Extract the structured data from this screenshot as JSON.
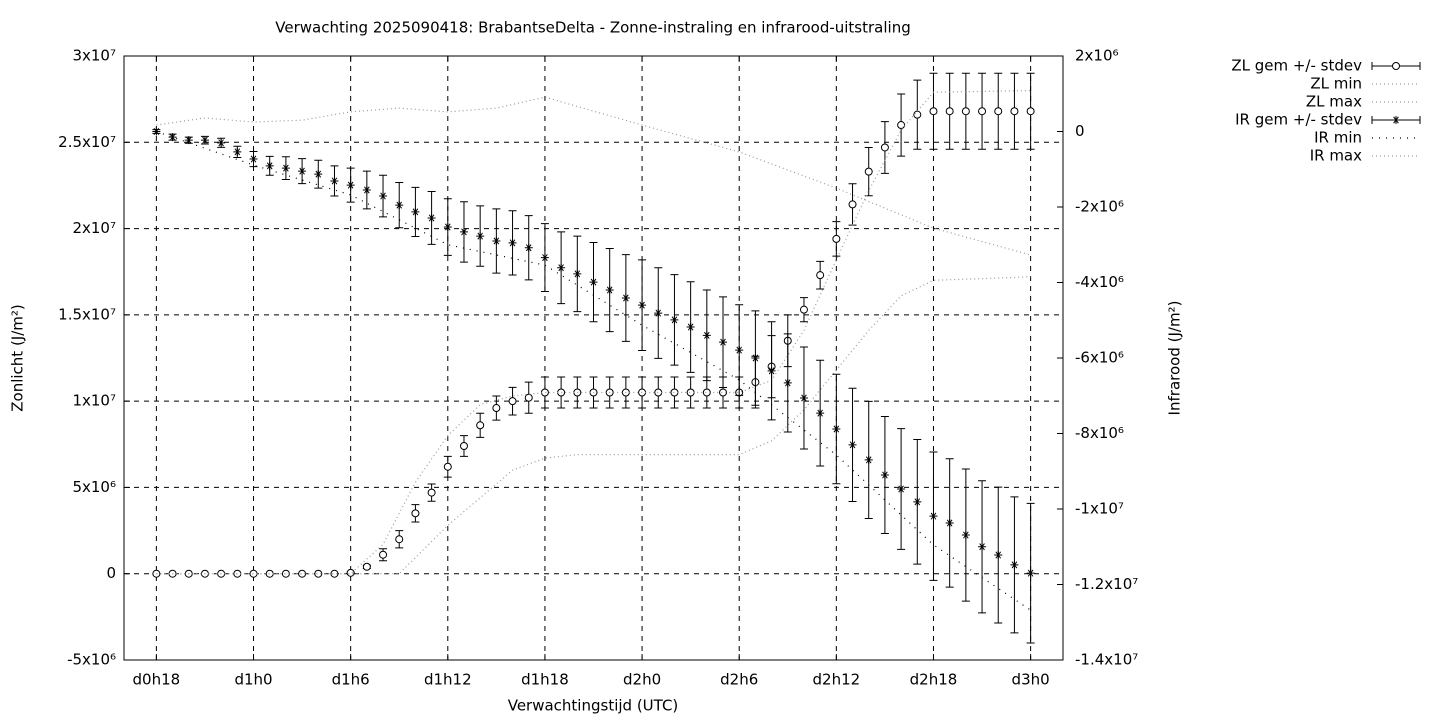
{
  "chart_data": {
    "type": "errorbar",
    "title": "Verwachting 2025090418: BrabantseDelta - Zonne-instraling en infrarood-uitstraling",
    "x_label": "Verwachtingstijd (UTC)",
    "y_label": "Zonlicht (J/m²)",
    "y2_label": "Infrarood (J/m²)",
    "grid": true,
    "legend": "outside-top-right",
    "xlim": [
      16,
      74
    ],
    "xticks": [
      {
        "value": 18,
        "label": "d0h18"
      },
      {
        "value": 24,
        "label": "d1h0"
      },
      {
        "value": 30,
        "label": "d1h6"
      },
      {
        "value": 36,
        "label": "d1h12"
      },
      {
        "value": 42,
        "label": "d1h18"
      },
      {
        "value": 48,
        "label": "d2h0"
      },
      {
        "value": 54,
        "label": "d2h6"
      },
      {
        "value": 60,
        "label": "d2h12"
      },
      {
        "value": 66,
        "label": "d2h18"
      },
      {
        "value": 72,
        "label": "d3h0"
      }
    ],
    "ylim": [
      -5000000,
      30000000
    ],
    "yticks": [
      {
        "value": -5000000,
        "label": "-5x10⁶"
      },
      0,
      {
        "value": 5000000,
        "label": "5x10⁶"
      },
      {
        "value": 10000000,
        "label": "1x10⁷"
      },
      {
        "value": 15000000,
        "label": "1.5x10⁷"
      },
      {
        "value": 20000000,
        "label": "2x10⁷"
      },
      {
        "value": 25000000,
        "label": "2.5x10⁷"
      },
      {
        "value": 30000000,
        "label": "3x10⁷"
      }
    ],
    "y2lim": [
      -14000000,
      2000000
    ],
    "y2ticks": [
      {
        "value": -14000000,
        "label": "-1.4x10⁷"
      },
      {
        "value": -12000000,
        "label": "-1.2x10⁷"
      },
      {
        "value": -10000000,
        "label": "-1x10⁷"
      },
      {
        "value": -8000000,
        "label": "-8x10⁶"
      },
      {
        "value": -6000000,
        "label": "-6x10⁶"
      },
      {
        "value": -4000000,
        "label": "-4x10⁶"
      },
      {
        "value": -2000000,
        "label": "-2x10⁶"
      },
      0,
      {
        "value": 2000000,
        "label": "2x10⁶"
      }
    ],
    "x": [
      18,
      19,
      20,
      21,
      22,
      23,
      24,
      25,
      26,
      27,
      28,
      29,
      30,
      31,
      32,
      33,
      34,
      35,
      36,
      37,
      38,
      39,
      40,
      41,
      42,
      43,
      44,
      45,
      46,
      47,
      48,
      49,
      50,
      51,
      52,
      53,
      54,
      55,
      56,
      57,
      58,
      59,
      60,
      61,
      62,
      63,
      64,
      65,
      66,
      67,
      68,
      69,
      70,
      71,
      72
    ],
    "series": [
      {
        "name": "ZL gem +/- stdev",
        "color": "#000000",
        "marker": "circle",
        "values": [
          0,
          0,
          0,
          0,
          0,
          0,
          0,
          0,
          0,
          0,
          0,
          0,
          50000,
          400000,
          1100000,
          2000000,
          3500000,
          4700000,
          6200000,
          7400000,
          8600000,
          9600000,
          10000000,
          10200000,
          10500000,
          10500000,
          10500000,
          10500000,
          10500000,
          10500000,
          10500000,
          10500000,
          10500000,
          10500000,
          10500000,
          10500000,
          10500000,
          11100000,
          12000000,
          13500000,
          15300000,
          17300000,
          19400000,
          21400000,
          23300000,
          24700000,
          26000000,
          26600000,
          26800000,
          26800000,
          26800000,
          26800000,
          26800000,
          26800000,
          26800000
        ],
        "errors": [
          0,
          0,
          0,
          0,
          0,
          0,
          0,
          0,
          0,
          0,
          0,
          0,
          30000,
          100000,
          350000,
          500000,
          500000,
          500000,
          600000,
          600000,
          700000,
          700000,
          800000,
          900000,
          900000,
          900000,
          900000,
          900000,
          900000,
          900000,
          900000,
          900000,
          900000,
          900000,
          900000,
          900000,
          900000,
          1500000,
          1800000,
          1500000,
          700000,
          800000,
          1000000,
          1200000,
          1400000,
          1500000,
          1800000,
          2000000,
          2200000,
          2200000,
          2200000,
          2200000,
          2200000,
          2200000,
          2200000
        ]
      },
      {
        "name": "ZL min",
        "color": "#999999",
        "x": [
          18,
          33,
          36,
          40,
          42,
          44,
          54,
          56,
          58,
          60,
          62,
          64,
          66,
          72
        ],
        "values": [
          0,
          0,
          2800000,
          6000000,
          6700000,
          6900000,
          6900000,
          7700000,
          9500000,
          11800000,
          14100000,
          16100000,
          17000000,
          17200000
        ]
      },
      {
        "name": "ZL max",
        "color": "#999999",
        "x": [
          18,
          30,
          32,
          34,
          36,
          38,
          40,
          42,
          54,
          56,
          58,
          60,
          62,
          64,
          66,
          72
        ],
        "values": [
          0,
          0,
          1700000,
          5300000,
          8000000,
          9800000,
          10300000,
          10500000,
          10500000,
          11200000,
          14100000,
          18200000,
          22200000,
          25700000,
          27900000,
          28000000
        ]
      },
      {
        "name": "IR gem +/- stdev",
        "color": "#000000",
        "marker": "star",
        "axis": "y2",
        "values": [
          0,
          -150000,
          -230000,
          -230000,
          -300000,
          -540000,
          -730000,
          -910000,
          -970000,
          -1050000,
          -1130000,
          -1310000,
          -1420000,
          -1550000,
          -1710000,
          -1950000,
          -2130000,
          -2290000,
          -2530000,
          -2660000,
          -2770000,
          -2900000,
          -2950000,
          -3080000,
          -3340000,
          -3610000,
          -3770000,
          -3990000,
          -4200000,
          -4410000,
          -4600000,
          -4810000,
          -4990000,
          -5180000,
          -5400000,
          -5580000,
          -5790000,
          -6000000,
          -6340000,
          -6660000,
          -7060000,
          -7460000,
          -7880000,
          -8300000,
          -8700000,
          -9100000,
          -9470000,
          -9810000,
          -10190000,
          -10370000,
          -10690000,
          -11000000,
          -11220000,
          -11480000,
          -11700000
        ],
        "errors": [
          50000,
          80000,
          80000,
          100000,
          120000,
          150000,
          200000,
          250000,
          300000,
          330000,
          370000,
          400000,
          450000,
          500000,
          550000,
          600000,
          650000,
          700000,
          750000,
          800000,
          800000,
          850000,
          850000,
          850000,
          900000,
          950000,
          1000000,
          1050000,
          1100000,
          1150000,
          1200000,
          1200000,
          1200000,
          1200000,
          1200000,
          1200000,
          1200000,
          1250000,
          1300000,
          1300000,
          1350000,
          1400000,
          1450000,
          1500000,
          1550000,
          1550000,
          1600000,
          1650000,
          1700000,
          1700000,
          1750000,
          1750000,
          1800000,
          1800000,
          1850000
        ]
      },
      {
        "name": "IR min",
        "color": "#000000",
        "axis": "y2",
        "x": [
          18,
          24,
          30,
          36,
          42,
          48,
          54,
          60,
          66,
          72
        ],
        "values": [
          0,
          -890000,
          -1680000,
          -3000000,
          -3540000,
          -5130000,
          -6580000,
          -8570000,
          -10950000,
          -12680000
        ]
      },
      {
        "name": "IR max",
        "color": "#999999",
        "axis": "y2",
        "x": [
          18,
          21,
          24,
          27,
          30,
          33,
          36,
          39,
          42,
          48,
          54,
          60,
          66,
          72
        ],
        "values": [
          170000,
          360000,
          250000,
          300000,
          520000,
          620000,
          520000,
          620000,
          910000,
          170000,
          -540000,
          -1500000,
          -2560000,
          -3270000
        ]
      }
    ]
  }
}
